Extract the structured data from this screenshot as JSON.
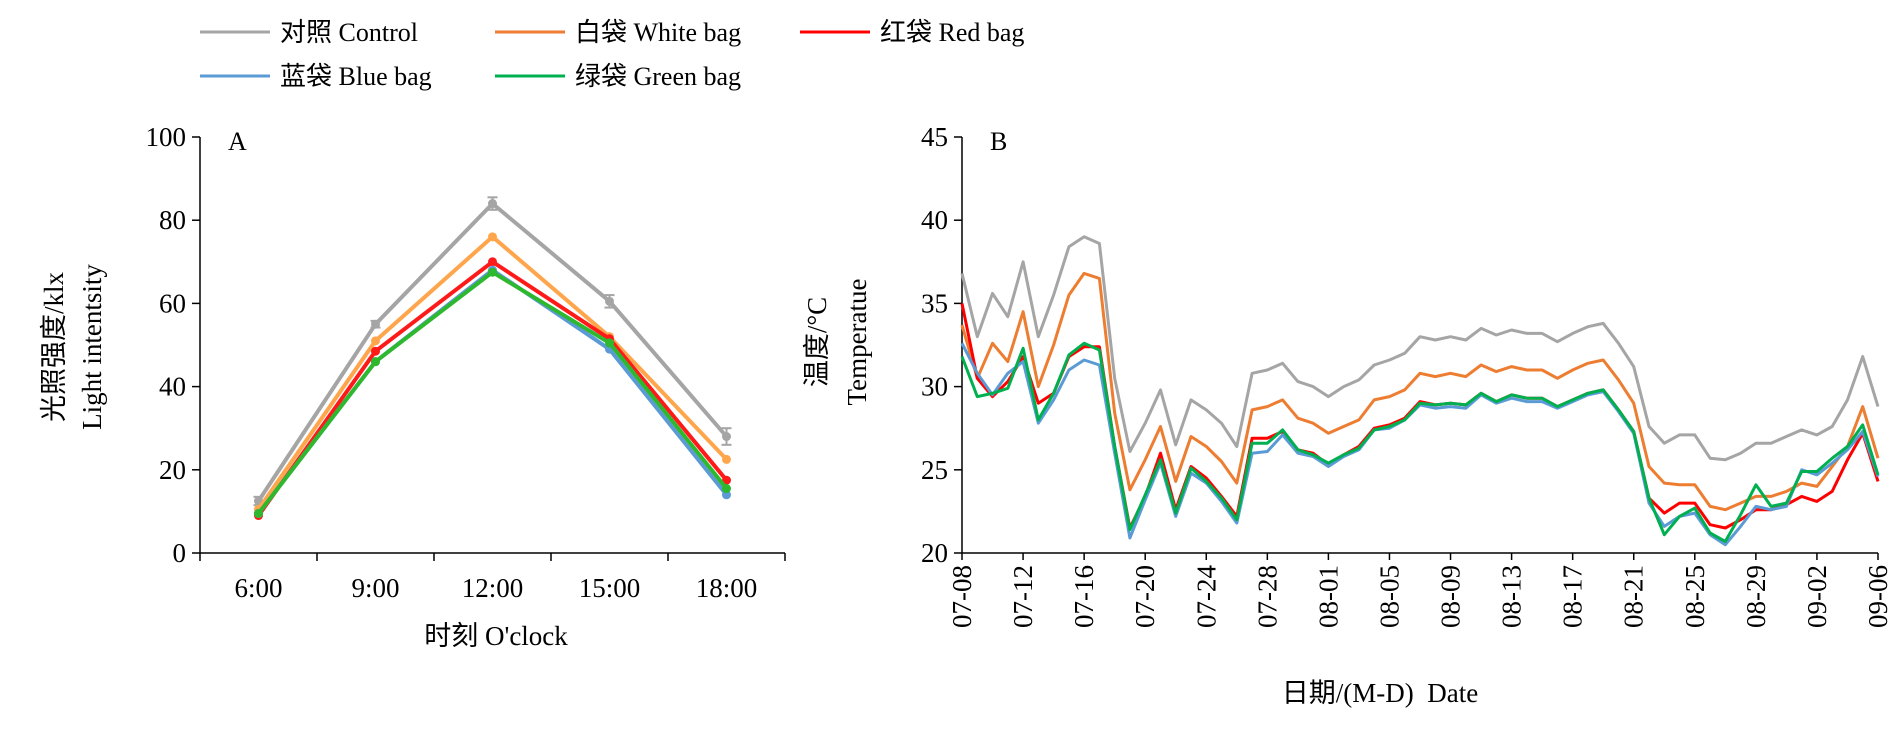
{
  "legend": {
    "items": [
      {
        "label": "对照 Control",
        "color": "#a5a5a5"
      },
      {
        "label": "白袋 White bag",
        "color": "#ed7d31"
      },
      {
        "label": "红袋 Red bag",
        "color": "#ff0000"
      },
      {
        "label": "蓝袋 Blue bag",
        "color": "#5b9bd5"
      },
      {
        "label": "绿袋 Green bag",
        "color": "#00b050"
      }
    ]
  },
  "chart_data": [
    {
      "type": "line",
      "panel_label": "A",
      "xlabel": "时刻 O'clock",
      "ylabel_line1": "光照强度/klx",
      "ylabel_line2": "Light intentsity",
      "categories": [
        "6:00",
        "9:00",
        "12:00",
        "15:00",
        "18:00"
      ],
      "ylim": [
        0,
        100
      ],
      "yticks": [
        0,
        20,
        40,
        60,
        80,
        100
      ],
      "grid": false,
      "series": [
        {
          "name": "对照 Control",
          "color": "#a5a5a5",
          "values": [
            12.5,
            55,
            84,
            60.5,
            28
          ],
          "errors": [
            1.0,
            0.8,
            1.5,
            1.5,
            2.0
          ]
        },
        {
          "name": "白袋 White bag",
          "color": "#ffa64d",
          "values": [
            10.5,
            51,
            76,
            52,
            22.5
          ],
          "errors": [
            0,
            0,
            0,
            0,
            0
          ]
        },
        {
          "name": "红袋 Red bag",
          "color": "#ff1a1a",
          "values": [
            9,
            48.5,
            70,
            51.5,
            17.5
          ],
          "errors": [
            0,
            0,
            0,
            0,
            0
          ]
        },
        {
          "name": "蓝袋 Blue bag",
          "color": "#5b9bd5",
          "values": [
            9.5,
            46,
            68,
            49,
            14
          ],
          "errors": [
            0,
            0,
            0,
            0,
            0
          ]
        },
        {
          "name": "绿袋 Green bag",
          "color": "#2eb82e",
          "values": [
            9.5,
            46,
            67.5,
            50.5,
            15.5
          ],
          "errors": [
            0,
            0,
            0,
            0,
            0
          ]
        }
      ]
    },
    {
      "type": "line",
      "panel_label": "B",
      "xlabel": "日期/(M-D)  Date",
      "ylabel_line1": "温度/°C",
      "ylabel_line2": "Temperatue",
      "x": [
        "07-08",
        "07-09",
        "07-10",
        "07-11",
        "07-12",
        "07-13",
        "07-14",
        "07-15",
        "07-16",
        "07-17",
        "07-18",
        "07-19",
        "07-20",
        "07-21",
        "07-22",
        "07-23",
        "07-24",
        "07-25",
        "07-26",
        "07-27",
        "07-28",
        "07-29",
        "07-30",
        "07-31",
        "08-01",
        "08-02",
        "08-03",
        "08-04",
        "08-05",
        "08-06",
        "08-07",
        "08-08",
        "08-09",
        "08-10",
        "08-11",
        "08-12",
        "08-13",
        "08-14",
        "08-15",
        "08-16",
        "08-17",
        "08-18",
        "08-19",
        "08-20",
        "08-21",
        "08-22",
        "08-23",
        "08-24",
        "08-25",
        "08-26",
        "08-27",
        "08-28",
        "08-29",
        "08-30",
        "08-31",
        "09-01",
        "09-02",
        "09-03",
        "09-04",
        "09-05",
        "09-06"
      ],
      "xticks": [
        "07-08",
        "07-12",
        "07-16",
        "07-20",
        "07-24",
        "07-28",
        "08-01",
        "08-05",
        "08-09",
        "08-13",
        "08-17",
        "08-21",
        "08-25",
        "08-29",
        "09-02",
        "09-06"
      ],
      "ylim": [
        20,
        45
      ],
      "yticks": [
        20,
        25,
        30,
        35,
        40,
        45
      ],
      "grid": false,
      "series": [
        {
          "name": "对照 Control",
          "color": "#a5a5a5",
          "values": [
            36.8,
            33.0,
            35.6,
            34.2,
            37.5,
            33.0,
            35.5,
            38.4,
            39.0,
            38.6,
            30.5,
            26.1,
            27.8,
            29.8,
            26.5,
            29.2,
            28.6,
            27.8,
            26.4,
            30.8,
            31.0,
            31.4,
            30.3,
            30.0,
            29.4,
            30.0,
            30.4,
            31.3,
            31.6,
            32.0,
            33.0,
            32.8,
            33.0,
            32.8,
            33.5,
            33.1,
            33.4,
            33.2,
            33.2,
            32.7,
            33.2,
            33.6,
            33.8,
            32.6,
            31.2,
            27.6,
            26.6,
            27.1,
            27.1,
            25.7,
            25.6,
            26.0,
            26.6,
            26.6,
            27.0,
            27.4,
            27.1,
            27.6,
            29.2,
            31.8,
            28.8
          ]
        },
        {
          "name": "白袋 White bag",
          "color": "#ed7d31",
          "values": [
            33.7,
            30.5,
            32.6,
            31.5,
            34.5,
            30.0,
            32.5,
            35.5,
            36.8,
            36.5,
            28.4,
            23.8,
            25.6,
            27.6,
            24.3,
            27.0,
            26.4,
            25.5,
            24.2,
            28.6,
            28.8,
            29.2,
            28.1,
            27.8,
            27.2,
            27.6,
            28.0,
            29.2,
            29.4,
            29.8,
            30.8,
            30.6,
            30.8,
            30.6,
            31.3,
            30.9,
            31.2,
            31.0,
            31.0,
            30.5,
            31.0,
            31.4,
            31.6,
            30.4,
            29.0,
            25.2,
            24.2,
            24.1,
            24.1,
            22.8,
            22.6,
            23.0,
            23.4,
            23.4,
            23.7,
            24.2,
            24.0,
            25.2,
            26.4,
            28.8,
            25.7
          ]
        },
        {
          "name": "红袋 Red bag",
          "color": "#ff0000",
          "values": [
            35.0,
            30.5,
            29.4,
            30.3,
            31.8,
            29.0,
            29.6,
            31.8,
            32.4,
            32.4,
            26.4,
            21.5,
            23.4,
            26.0,
            22.6,
            25.2,
            24.5,
            23.4,
            22.2,
            26.9,
            26.9,
            27.3,
            26.2,
            26.0,
            25.3,
            25.9,
            26.4,
            27.5,
            27.7,
            28.1,
            29.1,
            28.9,
            29.0,
            28.9,
            29.6,
            29.1,
            29.5,
            29.3,
            29.3,
            28.8,
            29.2,
            29.6,
            29.8,
            28.6,
            27.3,
            23.3,
            22.4,
            23.0,
            23.0,
            21.7,
            21.5,
            22.0,
            22.6,
            22.6,
            22.9,
            23.4,
            23.1,
            23.7,
            25.6,
            27.2,
            24.3
          ]
        },
        {
          "name": "蓝袋 Blue bag",
          "color": "#5b9bd5",
          "values": [
            32.6,
            30.8,
            29.5,
            30.8,
            31.5,
            27.8,
            29.2,
            31.0,
            31.6,
            31.3,
            26.0,
            20.9,
            23.2,
            25.4,
            22.2,
            24.8,
            24.2,
            23.1,
            21.8,
            26.0,
            26.1,
            27.1,
            26.0,
            25.8,
            25.2,
            25.8,
            26.2,
            27.4,
            27.5,
            28.0,
            28.9,
            28.7,
            28.8,
            28.7,
            29.5,
            29.0,
            29.3,
            29.1,
            29.1,
            28.7,
            29.1,
            29.5,
            29.7,
            28.5,
            27.2,
            23.0,
            21.6,
            22.2,
            22.4,
            21.1,
            20.5,
            21.6,
            22.8,
            22.6,
            22.8,
            25.0,
            24.7,
            25.4,
            26.2,
            27.3,
            24.6
          ]
        },
        {
          "name": "绿袋 Green bag",
          "color": "#00b050",
          "values": [
            31.8,
            29.4,
            29.6,
            29.9,
            32.3,
            28.0,
            29.6,
            31.9,
            32.6,
            32.2,
            26.4,
            21.4,
            23.5,
            25.6,
            22.4,
            25.1,
            24.3,
            23.3,
            22.0,
            26.6,
            26.6,
            27.4,
            26.2,
            25.9,
            25.4,
            25.9,
            26.3,
            27.4,
            27.6,
            28.0,
            29.0,
            28.9,
            29.0,
            28.9,
            29.6,
            29.1,
            29.5,
            29.3,
            29.3,
            28.8,
            29.2,
            29.6,
            29.8,
            28.6,
            27.3,
            23.3,
            21.1,
            22.2,
            22.7,
            21.2,
            20.7,
            22.3,
            24.1,
            22.8,
            23.0,
            24.9,
            24.9,
            25.7,
            26.4,
            27.7,
            24.7
          ]
        }
      ]
    }
  ]
}
